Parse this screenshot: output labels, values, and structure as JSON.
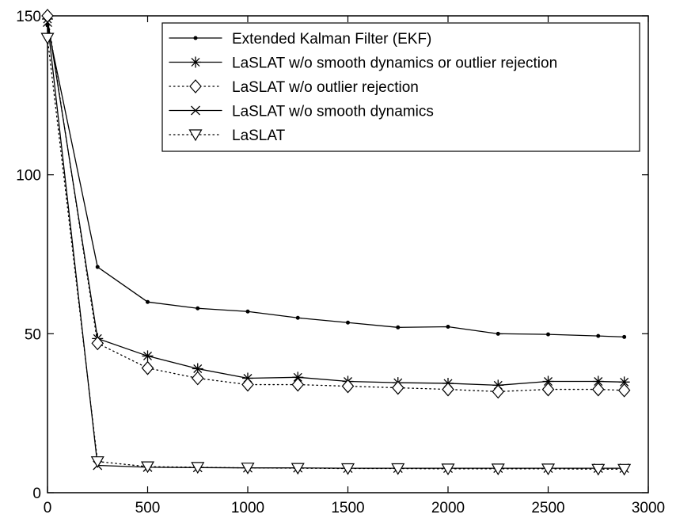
{
  "chart_data": {
    "type": "line",
    "title": "",
    "xlabel": "",
    "ylabel": "",
    "xlim": [
      0,
      3000
    ],
    "ylim": [
      0,
      150
    ],
    "xticks": [
      0,
      500,
      1000,
      1500,
      2000,
      2500,
      3000
    ],
    "yticks": [
      0,
      50,
      100,
      150
    ],
    "x_tick_labels": [
      "0",
      "500",
      "1000",
      "1500",
      "2000",
      "2500",
      "3000"
    ],
    "y_tick_labels": [
      "0",
      "50",
      "100",
      "150"
    ],
    "grid": false,
    "legend_position": "top-right",
    "x": [
      0,
      250,
      500,
      750,
      1000,
      1250,
      1500,
      1750,
      2000,
      2250,
      2500,
      2750,
      2880
    ],
    "series": [
      {
        "name": "Extended Kalman Filter (EKF)",
        "marker": "dot",
        "line_style": "solid",
        "values": [
          147,
          71,
          60,
          58,
          57,
          55,
          53.5,
          52,
          52.2,
          50,
          49.8,
          49.3,
          49
        ]
      },
      {
        "name": "LaSLAT w/o smooth dynamics or outlier rejection",
        "marker": "asterisk",
        "line_style": "solid",
        "values": [
          149,
          48.5,
          43,
          39,
          36,
          36.3,
          35,
          34.6,
          34.4,
          33.8,
          35,
          35,
          34.8
        ]
      },
      {
        "name": "LaSLAT w/o outlier rejection",
        "marker": "diamond",
        "line_style": "dotted",
        "values": [
          150,
          47,
          39.2,
          36,
          34,
          34,
          33.5,
          33,
          32.5,
          31.8,
          32.5,
          32.5,
          32.2
        ]
      },
      {
        "name": "LaSLAT w/o smooth dynamics",
        "marker": "x",
        "line_style": "solid",
        "values": [
          148,
          8.6,
          8,
          7.9,
          7.8,
          7.8,
          7.7,
          7.7,
          7.7,
          7.7,
          7.7,
          7.7,
          7.7
        ]
      },
      {
        "name": "LaSLAT",
        "marker": "triangle-down",
        "line_style": "dotted",
        "values": [
          143,
          9.8,
          8.2,
          8,
          7.8,
          7.7,
          7.6,
          7.6,
          7.5,
          7.5,
          7.5,
          7.4,
          7.4
        ]
      }
    ]
  }
}
